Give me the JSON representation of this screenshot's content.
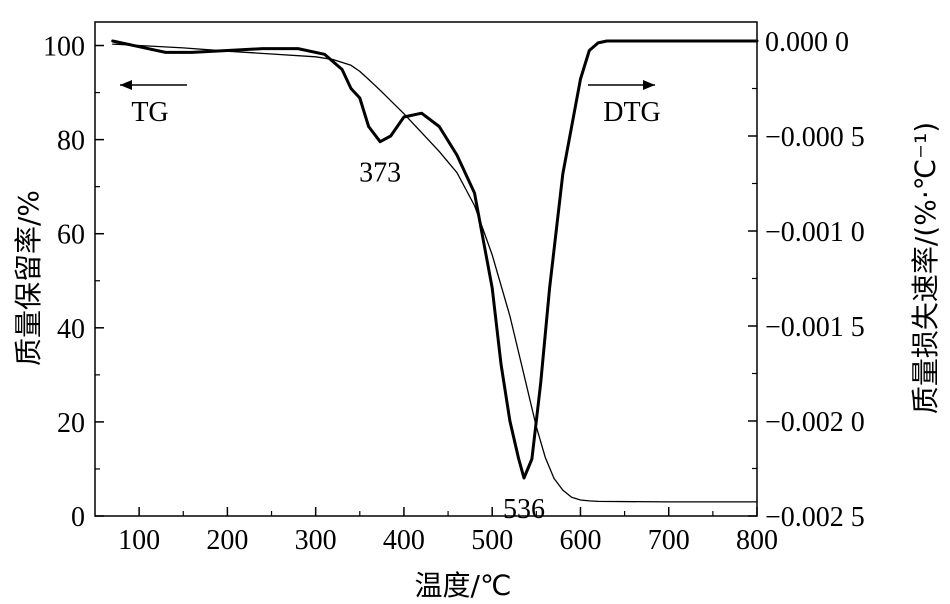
{
  "chart_data": {
    "type": "line",
    "xlabel": "温度/℃",
    "ylabel_left": "质量保留率/%",
    "ylabel_right": "质量损失速率/(%·℃⁻¹)",
    "x_ticks": [
      "100",
      "200",
      "300",
      "400",
      "500",
      "600",
      "700",
      "800"
    ],
    "y_left_ticks": [
      "0",
      "20",
      "40",
      "60",
      "80",
      "100"
    ],
    "y_right_ticks": [
      "0.000 0",
      "−0.000 5",
      "−0.001 0",
      "−0.001 5",
      "−0.002 0",
      "−0.002 5"
    ],
    "xlim": [
      50,
      800
    ],
    "ylim_left": [
      0,
      105
    ],
    "ylim_right": [
      -0.0025,
      0.0001
    ],
    "annotations": [
      {
        "text": "373",
        "x": 373
      },
      {
        "text": "536",
        "x": 536
      }
    ],
    "series": [
      {
        "name": "TG",
        "axis": "left",
        "arrow": "left",
        "x": [
          70,
          100,
          150,
          200,
          250,
          300,
          320,
          340,
          350,
          360,
          373,
          380,
          400,
          420,
          440,
          460,
          480,
          500,
          520,
          536,
          550,
          560,
          570,
          580,
          590,
          600,
          610,
          620,
          700,
          800
        ],
        "y": [
          100.3,
          100.0,
          99.5,
          98.8,
          98.2,
          97.6,
          97.0,
          95.8,
          94.5,
          92.8,
          90.5,
          89.2,
          85.5,
          81.5,
          77.5,
          73.0,
          66.0,
          55.5,
          42.5,
          30.0,
          19.0,
          12.5,
          8.0,
          5.5,
          4.0,
          3.4,
          3.2,
          3.1,
          3.0,
          3.0
        ]
      },
      {
        "name": "DTG",
        "axis": "right",
        "arrow": "right",
        "x": [
          70,
          100,
          130,
          160,
          200,
          240,
          280,
          310,
          330,
          340,
          350,
          360,
          373,
          385,
          400,
          420,
          440,
          460,
          480,
          500,
          510,
          520,
          530,
          536,
          545,
          555,
          565,
          580,
          600,
          610,
          620,
          630,
          660,
          700,
          800
        ],
        "y": [
          0.0,
          -3e-05,
          -6e-05,
          -6e-05,
          -5e-05,
          -4e-05,
          -4e-05,
          -7e-05,
          -0.00015,
          -0.00025,
          -0.0003,
          -0.00045,
          -0.00053,
          -0.0005,
          -0.0004,
          -0.00038,
          -0.00045,
          -0.0006,
          -0.0008,
          -0.0013,
          -0.0017,
          -0.002,
          -0.0022,
          -0.0023,
          -0.0022,
          -0.0018,
          -0.0013,
          -0.0007,
          -0.0002,
          -5e-05,
          -1e-05,
          0.0,
          0.0,
          0.0,
          0.0
        ]
      }
    ]
  }
}
